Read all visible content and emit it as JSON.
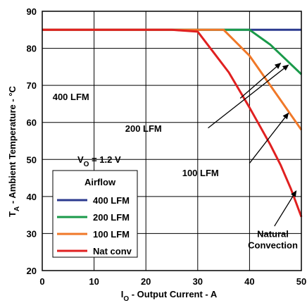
{
  "chart_data": {
    "type": "line",
    "xlim": [
      0,
      50
    ],
    "ylim": [
      20,
      90
    ],
    "x_ticks": [
      0,
      10,
      20,
      30,
      40,
      50
    ],
    "y_ticks": [
      20,
      30,
      40,
      50,
      60,
      70,
      80,
      90
    ],
    "grid": true,
    "xlabel": {
      "prefix": "I",
      "sub": "O",
      "suffix": " - Output Current - A"
    },
    "ylabel": {
      "prefix": "T",
      "sub": "A",
      "suffix": " - Ambient Temperature - °C"
    },
    "vo_label": {
      "prefix": "V",
      "sub": "O",
      "suffix": " = 1.2 V"
    },
    "legend": {
      "title": "Airflow",
      "placement": "lower-left",
      "entries": [
        "400 LFM",
        "200 LFM",
        "100 LFM",
        "Nat conv"
      ]
    },
    "series": [
      {
        "name": "400 LFM",
        "color": "#2b3a8f",
        "x": [
          0,
          50
        ],
        "y": [
          85,
          85
        ]
      },
      {
        "name": "200 LFM",
        "color": "#1a9a4a",
        "x": [
          0,
          40,
          44,
          47,
          50
        ],
        "y": [
          85,
          85,
          81,
          77,
          73
        ]
      },
      {
        "name": "100 LFM",
        "color": "#f07828",
        "x": [
          0,
          35,
          40,
          43,
          46,
          48,
          50
        ],
        "y": [
          85,
          85,
          78,
          72,
          66,
          62,
          58
        ]
      },
      {
        "name": "Nat conv",
        "color": "#e02020",
        "x": [
          0,
          25,
          30,
          33,
          36,
          40,
          44,
          46,
          48,
          50
        ],
        "y": [
          85,
          85,
          84.5,
          79,
          73.5,
          64,
          54,
          48.5,
          42,
          34.5
        ]
      }
    ],
    "annotations": [
      {
        "text": [
          "400 LFM"
        ],
        "x": 2.0,
        "y": 66.0,
        "arrow_to": [
          46,
          76
        ],
        "arrow_from": [
          38.2,
          66.5
        ]
      },
      {
        "text": [
          "200 LFM"
        ],
        "x": 16.0,
        "y": 57.5,
        "arrow_to": [
          47.5,
          75.5
        ],
        "arrow_from": [
          32.0,
          58.5
        ]
      },
      {
        "text": [
          "100 LFM"
        ],
        "x": 27.0,
        "y": 45.5,
        "arrow_to": [
          47.5,
          62.5
        ],
        "arrow_from": [
          40.0,
          49.0
        ]
      },
      {
        "text": [
          "Natural",
          "Convection"
        ],
        "x": 44.5,
        "y": 29.0,
        "arrow_to": [
          49.0,
          41.5
        ],
        "arrow_from": [
          44.8,
          32.0
        ]
      }
    ]
  }
}
